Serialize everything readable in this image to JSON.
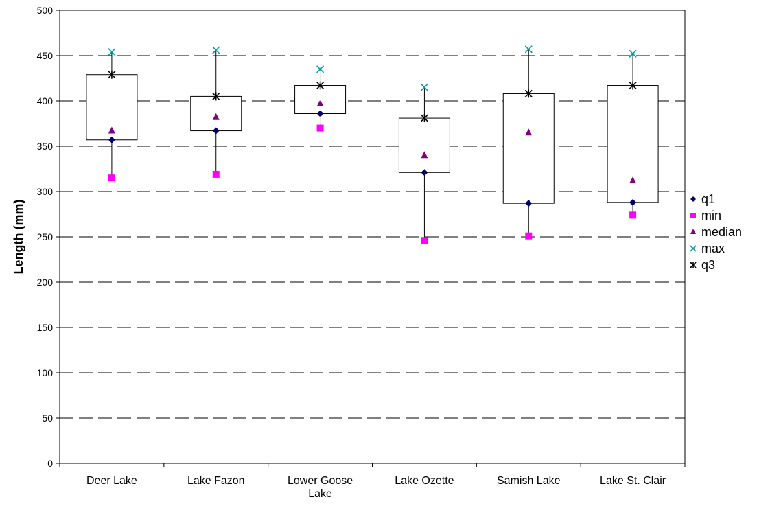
{
  "chart_data": {
    "type": "box",
    "title": "",
    "xlabel": "",
    "ylabel": "Length (mm)",
    "ylim": [
      0,
      500
    ],
    "ytick_step": 50,
    "grid": "horizontal dashed",
    "legend_position": "right",
    "categories": [
      [
        "Deer Lake"
      ],
      [
        "Lake Fazon"
      ],
      [
        "Lower Goose",
        "Lake"
      ],
      [
        "Lake Ozette"
      ],
      [
        "Samish Lake"
      ],
      [
        "Lake St. Clair"
      ]
    ],
    "series": [
      {
        "name": "q1",
        "marker": "diamond",
        "color": "#000066",
        "values": [
          357,
          367,
          386,
          321,
          287,
          288
        ]
      },
      {
        "name": "min",
        "marker": "square",
        "color": "#ff00ff",
        "values": [
          315,
          319,
          370,
          246,
          251,
          274
        ]
      },
      {
        "name": "median",
        "marker": "triangle",
        "color": "#800080",
        "values": [
          367,
          382,
          397,
          340,
          365,
          312
        ]
      },
      {
        "name": "max",
        "marker": "x",
        "color": "#00a0a0",
        "values": [
          454,
          456,
          435,
          415,
          457,
          452
        ]
      },
      {
        "name": "q3",
        "marker": "asterisk",
        "color": "#000000",
        "values": [
          429,
          405,
          417,
          381,
          408,
          417
        ]
      }
    ]
  }
}
